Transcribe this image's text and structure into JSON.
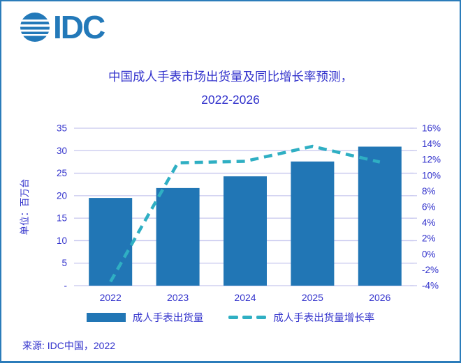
{
  "logo": {
    "brand": "IDC",
    "icon": "idc-globe-icon"
  },
  "title": {
    "line1": "中国成人手表市场出货量及同比增长率预测，",
    "line2": "2022-2026"
  },
  "chart_data": {
    "type": "bar",
    "subtype": "combo-bar-line",
    "title": "中国成人手表市场出货量及同比增长率预测，2022-2026",
    "categories": [
      "2022",
      "2023",
      "2024",
      "2025",
      "2026"
    ],
    "series": [
      {
        "name": "成人手表出货量",
        "type": "bar",
        "unit": "百万台",
        "color": "#2176b5",
        "values": [
          19.5,
          21.7,
          24.3,
          27.6,
          30.9
        ]
      },
      {
        "name": "成人手表出货量增长率",
        "type": "line",
        "style": "dashed",
        "unit": "%",
        "color": "#2fafc3",
        "values": [
          -3.5,
          11.6,
          11.8,
          13.7,
          11.7
        ]
      }
    ],
    "ylabel_left": "单位：百万台",
    "left_axis": {
      "min": 0,
      "max": 35,
      "step": 5,
      "tick_labels": [
        "35",
        "30",
        "25",
        "20",
        "15",
        "10",
        "5",
        "-"
      ]
    },
    "right_axis": {
      "min": -4,
      "max": 16,
      "step": 2,
      "tick_labels": [
        "16%",
        "14%",
        "12%",
        "10%",
        "8%",
        "6%",
        "4%",
        "2%",
        "0%",
        "-2%",
        "-4%"
      ]
    },
    "grid": true,
    "legend_position": "bottom"
  },
  "legend": {
    "bar_label": "成人手表出货量",
    "line_label": "成人手表出货量增长率"
  },
  "source": "来源: IDC中国，2022",
  "colors": {
    "brand_blue": "#2379b9",
    "bar": "#2176b5",
    "line": "#2fafc3",
    "text": "#3333cc",
    "gridline": "#c6c6ee",
    "border": "#2b7cba"
  }
}
